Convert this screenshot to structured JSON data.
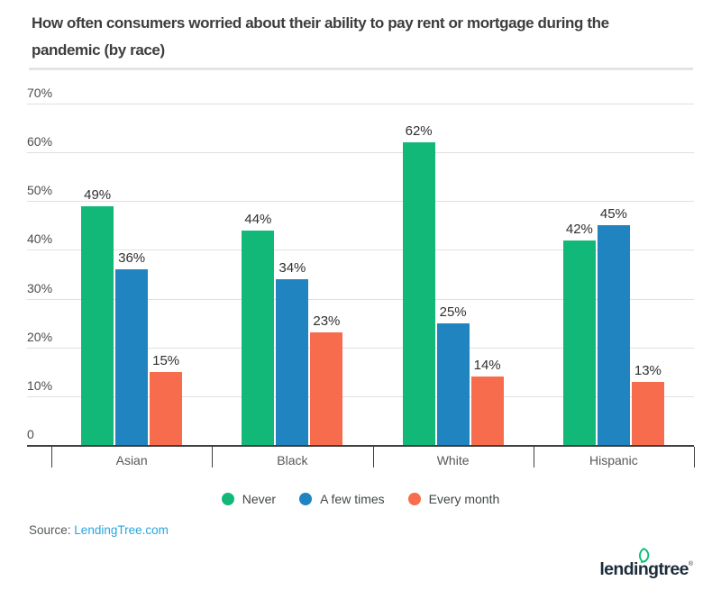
{
  "header": {
    "title_lines": [
      "How often consumers worried about their ability to pay rent or mortgage during the",
      "pandemic (by race)"
    ]
  },
  "chart_data": {
    "type": "bar",
    "title": "How often consumers worried about their ability to pay rent or mortgage during the pandemic (by race)",
    "categories": [
      "Asian",
      "Black",
      "White",
      "Hispanic"
    ],
    "series": [
      {
        "name": "Never",
        "color": "#11b877",
        "values": [
          49,
          44,
          62,
          42
        ]
      },
      {
        "name": "A few times",
        "color": "#1f84c0",
        "values": [
          36,
          34,
          25,
          45
        ]
      },
      {
        "name": "Every month",
        "color": "#f76c4d",
        "values": [
          15,
          23,
          14,
          13
        ]
      }
    ],
    "value_suffix": "%",
    "ylim": [
      0,
      70
    ],
    "yticks": [
      {
        "value": 70,
        "label": "70%"
      },
      {
        "value": 60,
        "label": "60%"
      },
      {
        "value": 50,
        "label": "50%"
      },
      {
        "value": 40,
        "label": "40%"
      },
      {
        "value": 30,
        "label": "30%"
      },
      {
        "value": 20,
        "label": "20%"
      },
      {
        "value": 10,
        "label": "10%"
      },
      {
        "value": 0,
        "label": "0"
      }
    ],
    "grid": true,
    "legend_position": "bottom"
  },
  "source": {
    "label": "Source:",
    "link_text": "LendingTree.com"
  },
  "logo": {
    "wordmark": "lendingtree",
    "registered": "®"
  },
  "colors": {
    "accent_green": "#11b877",
    "accent_blue": "#1f84c0",
    "accent_orange": "#f76c4d",
    "link_blue": "#29a5dd",
    "logo_navy": "#1d2c3b",
    "leaf_green": "#00bf6f",
    "gridline": "#e0e0e0",
    "axis": "#3f3f3f",
    "title_text": "#3d3d3d"
  }
}
